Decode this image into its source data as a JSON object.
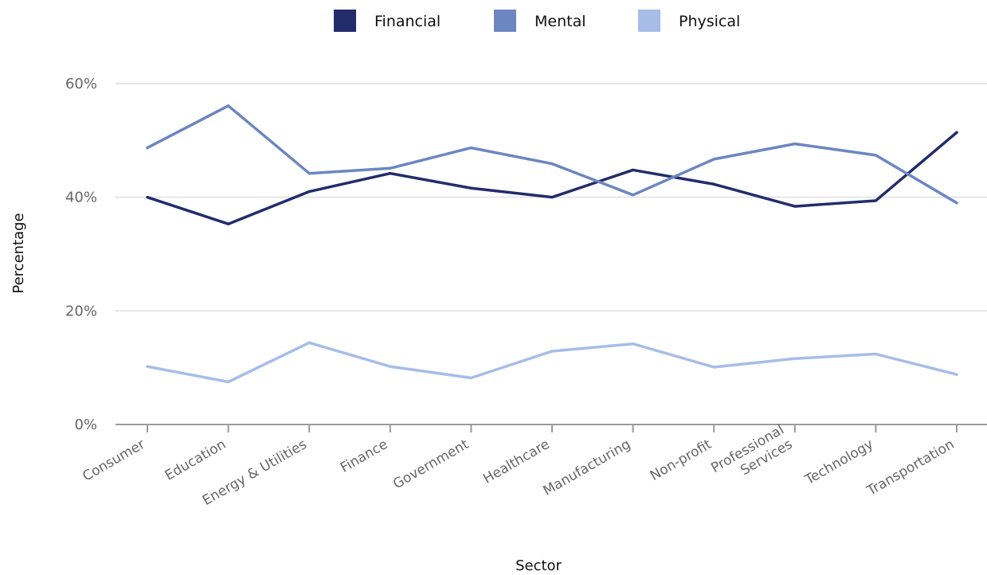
{
  "chart_data": {
    "type": "line",
    "title": "",
    "xlabel": "Sector",
    "ylabel": "Percentage",
    "categories": [
      "Consumer",
      "Education",
      "Energy & Utilities",
      "Finance",
      "Government",
      "Healthcare",
      "Manufacturing",
      "Non-profit",
      "Professional Services",
      "Technology",
      "Transportation"
    ],
    "ylim": [
      0,
      60
    ],
    "yticks": [
      0,
      20,
      40,
      60
    ],
    "ytick_labels": [
      "0%",
      "20%",
      "40%",
      "60%"
    ],
    "grid": true,
    "legend_position": "top-center",
    "series": [
      {
        "name": "Financial",
        "color": "#232c6b",
        "values": [
          40,
          35.3,
          41,
          44.2,
          41.6,
          40,
          44.8,
          42.3,
          38.4,
          39.4,
          51.4
        ]
      },
      {
        "name": "Mental",
        "color": "#6c86c1",
        "values": [
          48.7,
          56.1,
          44.2,
          45.1,
          48.7,
          45.9,
          40.4,
          46.7,
          49.4,
          47.4,
          39
        ]
      },
      {
        "name": "Physical",
        "color": "#a7bde8",
        "values": [
          10.2,
          7.5,
          14.4,
          10.2,
          8.2,
          12.9,
          14.2,
          10.1,
          11.6,
          12.4,
          8.8
        ]
      }
    ]
  }
}
